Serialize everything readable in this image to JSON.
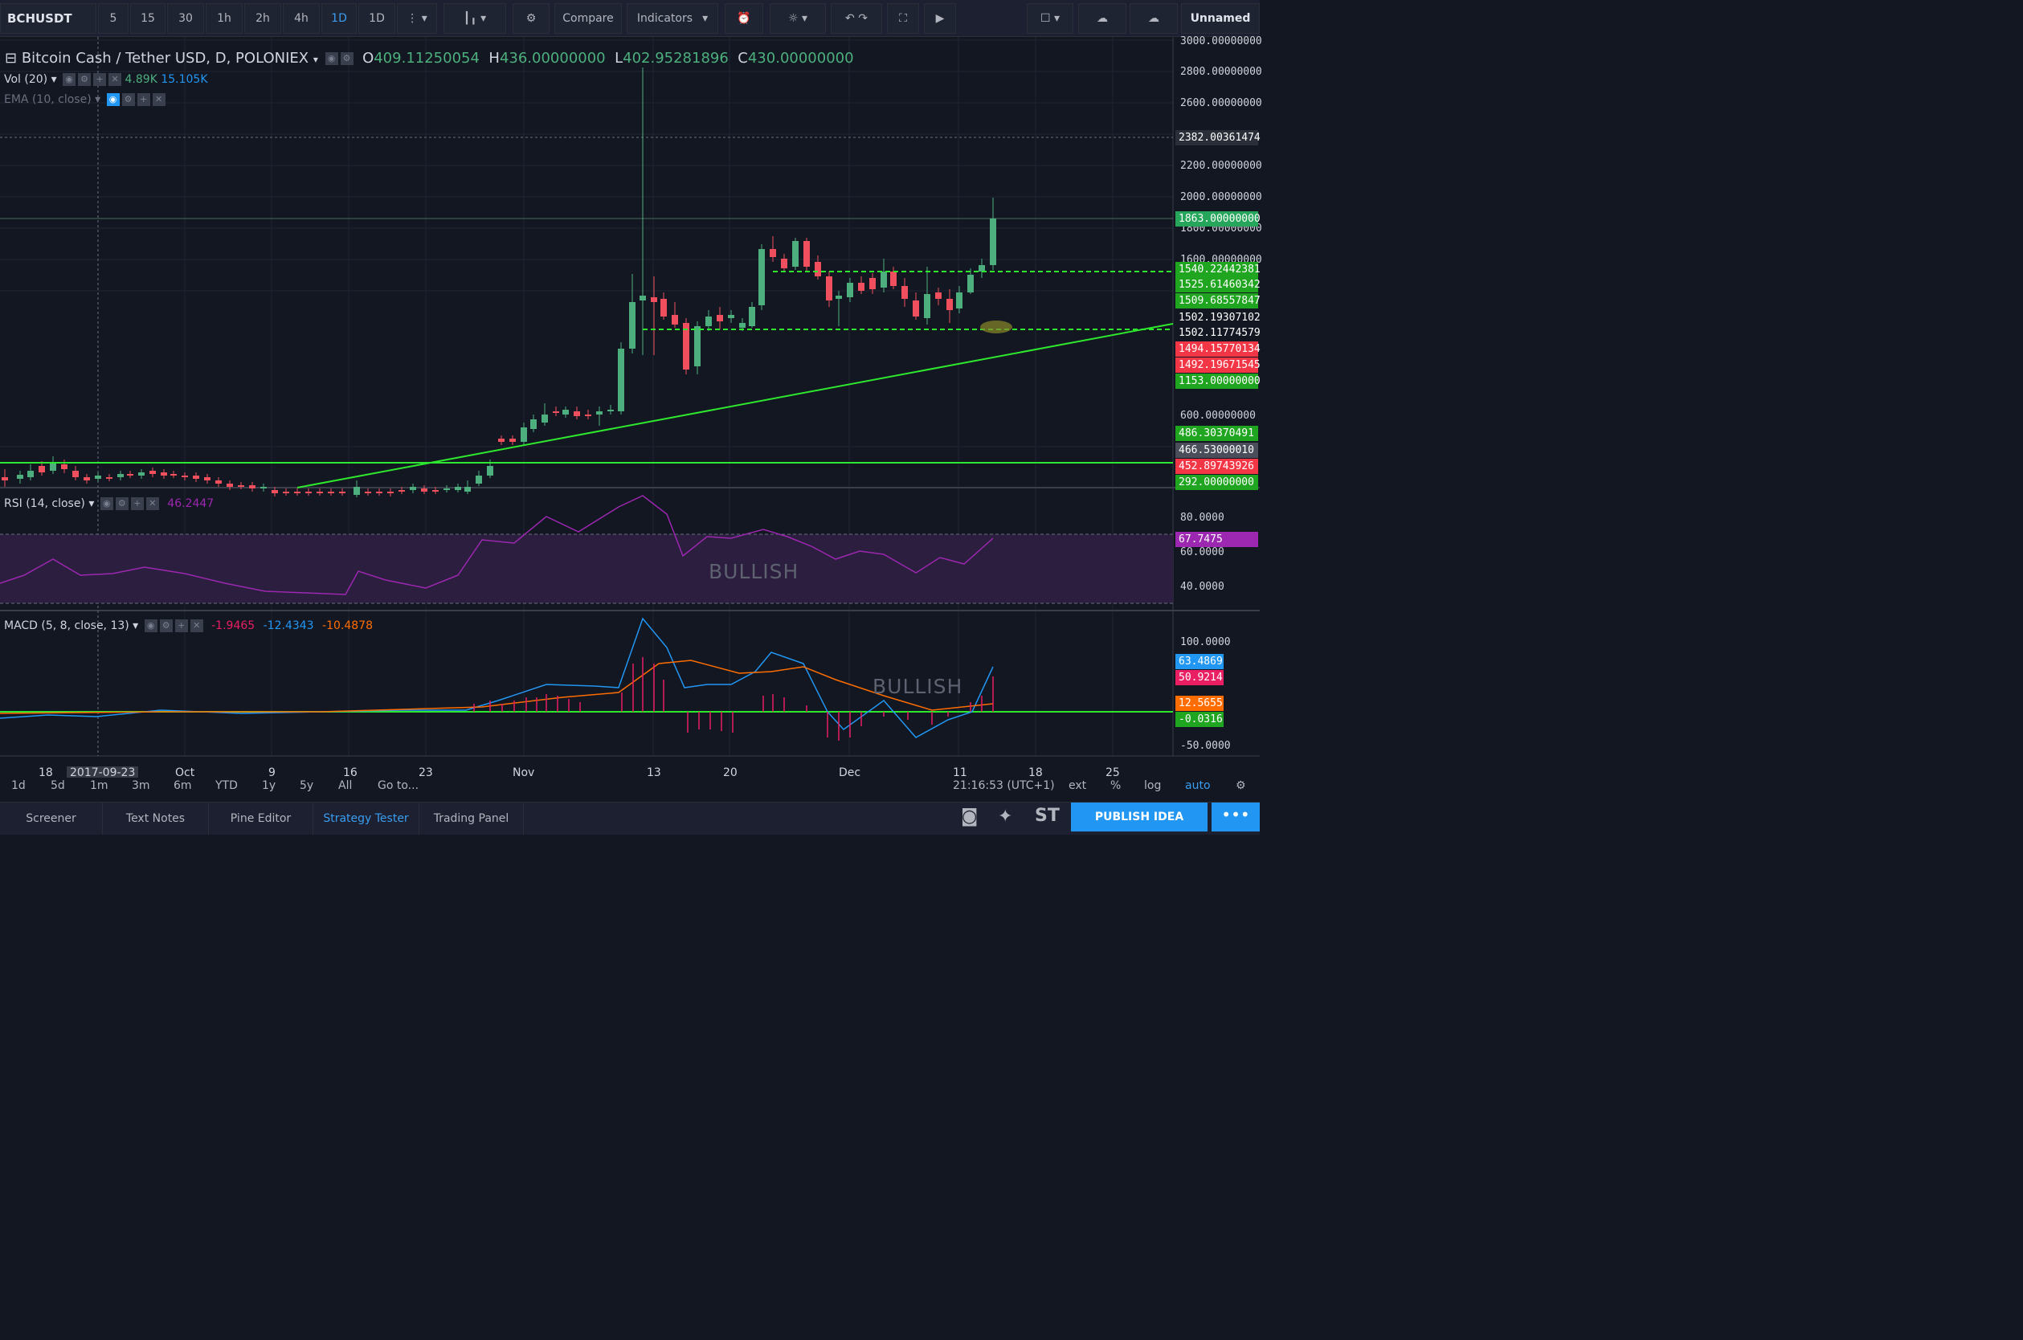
{
  "toolbar": {
    "symbol": "BCHUSDT",
    "intervals": [
      "5",
      "15",
      "30",
      "1h",
      "2h",
      "4h",
      "1D",
      "1D"
    ],
    "active_interval": "1D",
    "compare_label": "Compare",
    "indicators_label": "Indicators",
    "layout_name": "Unnamed"
  },
  "legend": {
    "title": "Bitcoin Cash / Tether USD, D, POLONIEX",
    "o_label": "O",
    "o_value": "409.11250054",
    "h_label": "H",
    "h_value": "436.00000000",
    "l_label": "L",
    "l_value": "402.95281896",
    "c_label": "C",
    "c_value": "430.00000000",
    "vol_label": "Vol (20)",
    "vol_v1": "4.89K",
    "vol_v2": "15.105K",
    "ema_label": "EMA (10, close)"
  },
  "price_axis": [
    "3000.00000000",
    "2800.00000000",
    "2600.00000000",
    "2200.00000000",
    "2000.00000000",
    "1800.00000000",
    "1600.00000000",
    "600.00000000"
  ],
  "price_tags": [
    {
      "value": "2382.00361474",
      "color": "#2a2e39"
    },
    {
      "value": "1863.00000000",
      "color": "#26a65b"
    },
    {
      "value": "1540.22442381",
      "color": "#1fa51f"
    },
    {
      "value": "1525.61460342",
      "color": "#1fa51f"
    },
    {
      "value": "1509.68557847",
      "color": "#1fa51f"
    },
    {
      "value": "1502.19307102",
      "color": "#131722"
    },
    {
      "value": "1502.11774579",
      "color": "#131722"
    },
    {
      "value": "1494.15770134",
      "color": "#f23645"
    },
    {
      "value": "1492.19671545",
      "color": "#f23645"
    },
    {
      "value": "1153.00000000",
      "color": "#1fa51f"
    },
    {
      "value": "486.30370491",
      "color": "#1fa51f"
    },
    {
      "value": "466.53000010",
      "color": "#4a4e5a"
    },
    {
      "value": "452.89743926",
      "color": "#f23645"
    },
    {
      "value": "292.00000000",
      "color": "#1fa51f"
    }
  ],
  "rsi": {
    "label": "RSI (14, close)",
    "value": "46.2447",
    "axis": [
      "80.0000",
      "60.0000",
      "40.0000"
    ],
    "tag": "67.7475",
    "annotation": "BULLISH"
  },
  "macd": {
    "label": "MACD (5, 8, close, 13)",
    "v1": "-1.9465",
    "v2": "-12.4343",
    "v3": "-10.4878",
    "axis": [
      "100.0000",
      "-50.0000"
    ],
    "tags": [
      {
        "value": "63.4869",
        "color": "#2196f3"
      },
      {
        "value": "50.9214",
        "color": "#e91e63"
      },
      {
        "value": "12.5655",
        "color": "#ff6d00"
      },
      {
        "value": "-0.0316",
        "color": "#1fa51f"
      }
    ],
    "annotation": "BULLISH"
  },
  "time_axis": [
    "18",
    "2017-09-23",
    "Oct",
    "9",
    "16",
    "23",
    "Nov",
    "13",
    "20",
    "Dec",
    "11",
    "18",
    "25"
  ],
  "ranges": [
    "1d",
    "5d",
    "1m",
    "3m",
    "6m",
    "YTD",
    "1y",
    "5y",
    "All",
    "Go to..."
  ],
  "clock": "21:16:53 (UTC+1)",
  "scale_opts": [
    "ext",
    "%",
    "log",
    "auto"
  ],
  "tabs": [
    "Screener",
    "Text Notes",
    "Pine Editor",
    "Strategy Tester",
    "Trading Panel"
  ],
  "active_tab": "Strategy Tester",
  "share_icons": [
    "camera-icon",
    "twitter-icon",
    "stocktwits-icon"
  ],
  "stocktwits_label": "ST",
  "publish_label": "PUBLISH IDEA",
  "colors": {
    "up": "#4caf7d",
    "down": "#f04f5d",
    "trendline": "#2ee82e",
    "rsi": "#9c27b0",
    "macd": "#2196f3",
    "signal": "#ff6d00",
    "hist": "#e91e63"
  }
}
